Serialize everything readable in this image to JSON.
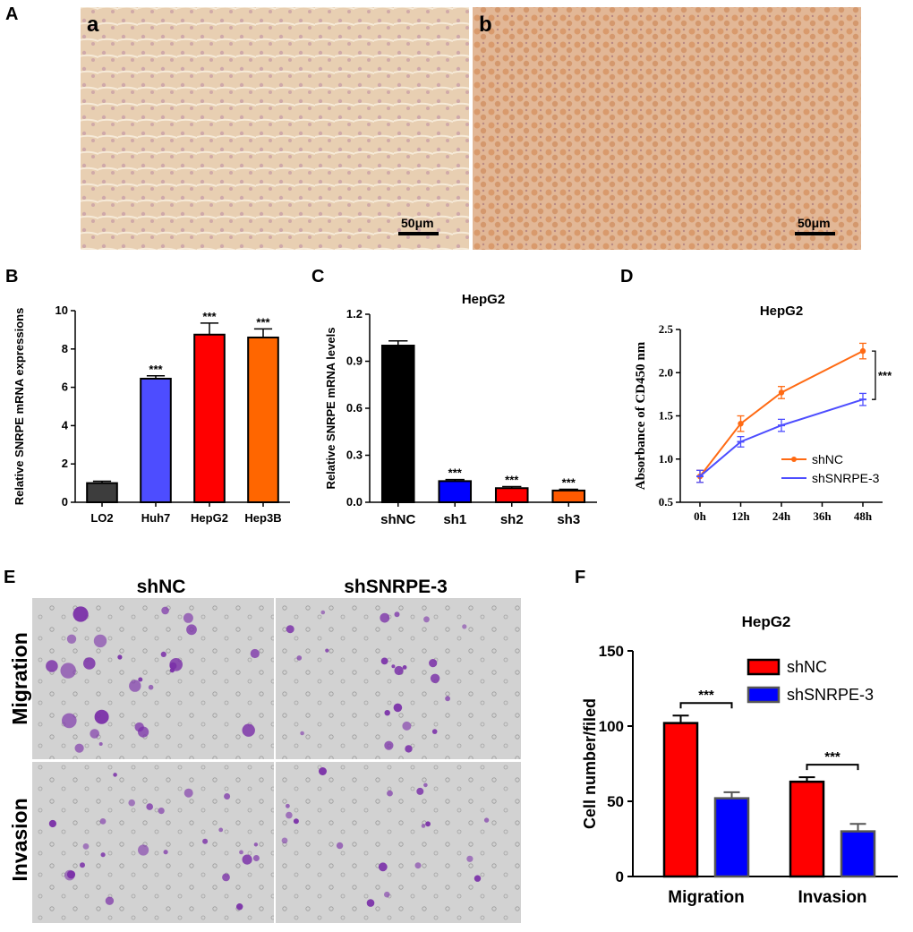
{
  "panels": {
    "A": "A",
    "B": "B",
    "C": "C",
    "D": "D",
    "E": "E",
    "F": "F"
  },
  "histology": {
    "left_label": "a",
    "right_label": "b",
    "scale_bar": "50μm",
    "left_color": "#e6c9a8",
    "right_color": "#e3b390"
  },
  "transwell": {
    "columns": [
      "shNC",
      "shSNRPE-3"
    ],
    "rows": [
      "Migration",
      "Invasion"
    ],
    "background": "#cfcfcf",
    "stain": "#7a2fa8"
  },
  "sig_marker": "***",
  "chart_data": [
    {
      "id": "B",
      "type": "bar",
      "title": "",
      "ylabel": "Relative SNRPE mRNA expressions",
      "xlabel": "",
      "categories": [
        "LO2",
        "Huh7",
        "HepG2",
        "Hep3B"
      ],
      "values": [
        1.0,
        6.45,
        8.75,
        8.6
      ],
      "errors": [
        0.1,
        0.15,
        0.6,
        0.45
      ],
      "colors": [
        "#3d3d3d",
        "#4d4dff",
        "#ff0000",
        "#ff6600"
      ],
      "significance": [
        "",
        "***",
        "***",
        "***"
      ],
      "yticks": [
        "0",
        "2",
        "4",
        "6",
        "8",
        "10"
      ],
      "ylim": [
        0,
        10
      ]
    },
    {
      "id": "C",
      "type": "bar",
      "title": "HepG2",
      "ylabel": "Relative SNRPE mRNA levels",
      "xlabel": "",
      "categories": [
        "shNC",
        "sh1",
        "sh2",
        "sh3"
      ],
      "values": [
        1.0,
        0.135,
        0.09,
        0.075
      ],
      "errors": [
        0.03,
        0.01,
        0.01,
        0.008
      ],
      "colors": [
        "#000000",
        "#0000ff",
        "#ff0000",
        "#ff5a00"
      ],
      "significance": [
        "",
        "***",
        "***",
        "***"
      ],
      "yticks": [
        "0.0",
        "0.3",
        "0.6",
        "0.9",
        "1.2"
      ],
      "ylim": [
        0,
        1.2
      ]
    },
    {
      "id": "D",
      "type": "line",
      "title": "HepG2",
      "ylabel": "Absorbance of CD450 nm",
      "xlabel": "",
      "categories": [
        "0h",
        "12h",
        "24h",
        "36h",
        "48h"
      ],
      "x": [
        0,
        12,
        24,
        48
      ],
      "series": [
        {
          "name": "shNC",
          "color": "#ff6a13",
          "values": [
            0.8,
            1.41,
            1.77,
            2.25
          ],
          "errors": [
            0.07,
            0.09,
            0.07,
            0.09
          ]
        },
        {
          "name": "shSNRPE-3",
          "color": "#4d4dff",
          "values": [
            0.8,
            1.2,
            1.39,
            1.69
          ],
          "errors": [
            0.07,
            0.06,
            0.07,
            0.07
          ]
        }
      ],
      "significance": "***",
      "yticks": [
        "0.5",
        "1.0",
        "1.5",
        "2.0",
        "2.5"
      ],
      "ylim": [
        0.5,
        2.5
      ]
    },
    {
      "id": "F",
      "type": "bar",
      "title": "HepG2",
      "ylabel": "Cell number/filed",
      "xlabel": "",
      "categories": [
        "Migration",
        "Invasion"
      ],
      "series": [
        {
          "name": "shNC",
          "color": "#ff0000",
          "values": [
            102,
            63
          ],
          "errors": [
            5,
            3
          ]
        },
        {
          "name": "shSNRPE-3",
          "color": "#0000ff",
          "values": [
            52,
            30
          ],
          "errors": [
            4,
            5
          ]
        }
      ],
      "significance": [
        "***",
        "***"
      ],
      "yticks": [
        "0",
        "50",
        "100",
        "150"
      ],
      "ylim": [
        0,
        150
      ]
    }
  ]
}
